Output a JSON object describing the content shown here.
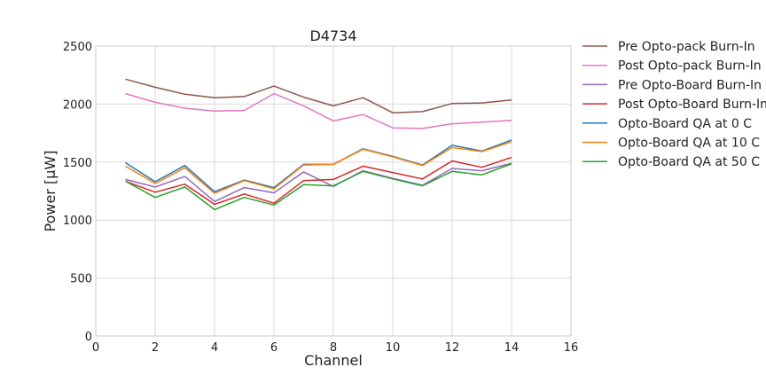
{
  "chart_data": {
    "type": "line",
    "title": "D4734",
    "xlabel": "Channel",
    "ylabel": "Power [μW]",
    "xlim": [
      0,
      16
    ],
    "ylim": [
      0,
      2500
    ],
    "xticks": [
      0,
      2,
      4,
      6,
      8,
      10,
      12,
      14,
      16
    ],
    "yticks": [
      0,
      500,
      1000,
      1500,
      2000,
      2500
    ],
    "grid": true,
    "legend_position": "outside-right",
    "x": [
      1,
      2,
      3,
      4,
      5,
      6,
      7,
      8,
      9,
      10,
      11,
      12,
      13,
      14
    ],
    "series": [
      {
        "name": "Pre Opto-pack Burn-In",
        "color": "#8c564b",
        "values": [
          2215,
          2145,
          2085,
          2055,
          2065,
          2155,
          2060,
          1985,
          2055,
          1925,
          1935,
          2005,
          2010,
          2035
        ]
      },
      {
        "name": "Post Opto-pack Burn-In",
        "color": "#e377c2",
        "values": [
          2090,
          2015,
          1965,
          1940,
          1945,
          2090,
          1985,
          1855,
          1910,
          1795,
          1790,
          1830,
          1845,
          1860
        ]
      },
      {
        "name": "Pre Opto-Board Burn-In",
        "color": "#9467bd",
        "values": [
          1350,
          1285,
          1375,
          1160,
          1280,
          1235,
          1415,
          1290,
          1425,
          1360,
          1300,
          1445,
          1425,
          1490
        ]
      },
      {
        "name": "Post Opto-Board Burn-In",
        "color": "#d62728",
        "values": [
          1335,
          1240,
          1310,
          1135,
          1225,
          1145,
          1340,
          1350,
          1465,
          1410,
          1355,
          1510,
          1455,
          1540
        ]
      },
      {
        "name": "Opto-Board QA at 0 C",
        "color": "#1f77b4",
        "values": [
          1495,
          1330,
          1470,
          1245,
          1345,
          1280,
          1480,
          1480,
          1615,
          1550,
          1475,
          1645,
          1595,
          1690
        ]
      },
      {
        "name": "Opto-Board QA at 10 C",
        "color": "#ff7f0e",
        "values": [
          1465,
          1315,
          1450,
          1230,
          1340,
          1270,
          1475,
          1480,
          1610,
          1545,
          1470,
          1625,
          1590,
          1675
        ]
      },
      {
        "name": "Opto-Board QA at 50 C",
        "color": "#2ca02c",
        "values": [
          1335,
          1195,
          1285,
          1090,
          1195,
          1130,
          1305,
          1295,
          1420,
          1355,
          1295,
          1420,
          1390,
          1485
        ]
      }
    ]
  }
}
